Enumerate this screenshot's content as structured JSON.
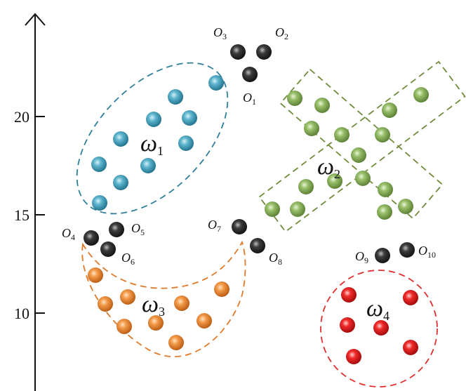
{
  "axis": {
    "ticks": [
      {
        "value": 20,
        "label": "20"
      },
      {
        "value": 15,
        "label": "15"
      },
      {
        "value": 10,
        "label": "10"
      }
    ]
  },
  "colors": {
    "blue": "#3a97b3",
    "green": "#7fa85a",
    "orange": "#e88a3a",
    "red": "#e02020",
    "black": "#2b2b2b",
    "blue_outline": "#2f7f99",
    "green_outline": "#6f8c3a",
    "orange_outline": "#e07a2a",
    "red_outline": "#e03030"
  },
  "clusters": [
    {
      "id": "omega1",
      "symbol": "ω",
      "subscript": "1",
      "color": "blue"
    },
    {
      "id": "omega2",
      "symbol": "ω",
      "subscript": "2",
      "color": "green"
    },
    {
      "id": "omega3",
      "symbol": "ω",
      "subscript": "3",
      "color": "orange"
    },
    {
      "id": "omega4",
      "symbol": "ω",
      "subscript": "4",
      "color": "red"
    }
  ],
  "outliers": [
    {
      "letter": "O",
      "subscript": "1"
    },
    {
      "letter": "O",
      "subscript": "2"
    },
    {
      "letter": "O",
      "subscript": "3"
    },
    {
      "letter": "O",
      "subscript": "4"
    },
    {
      "letter": "O",
      "subscript": "5"
    },
    {
      "letter": "O",
      "subscript": "6"
    },
    {
      "letter": "O",
      "subscript": "7"
    },
    {
      "letter": "O",
      "subscript": "8"
    },
    {
      "letter": "O",
      "subscript": "9"
    },
    {
      "letter": "O",
      "subscript": "10"
    }
  ]
}
